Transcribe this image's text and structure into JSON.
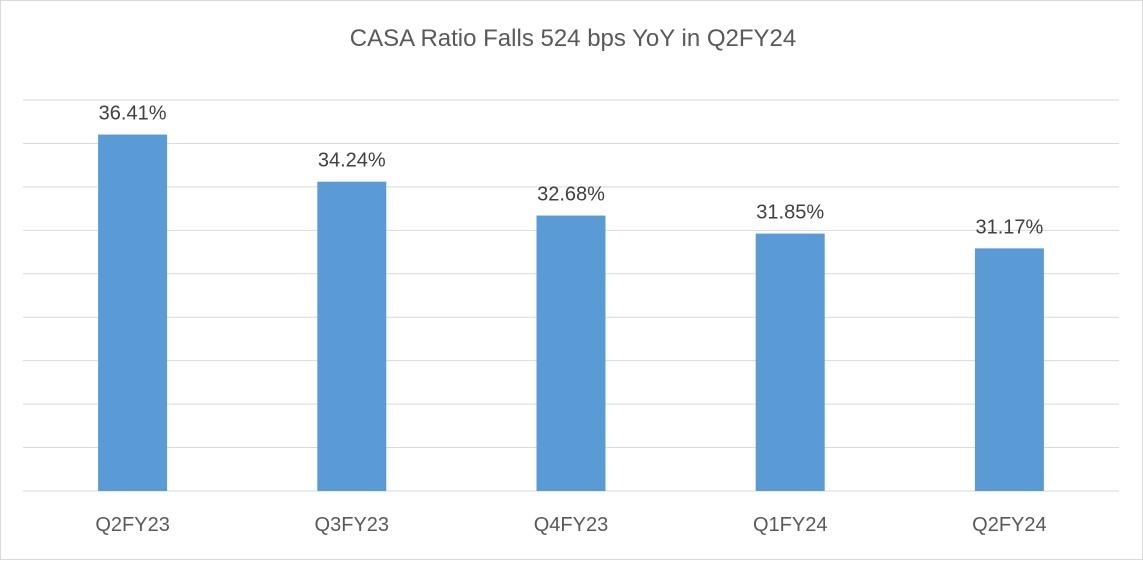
{
  "chart_data": {
    "type": "bar",
    "title": "CASA Ratio Falls 524 bps YoY in Q2FY24",
    "categories": [
      "Q2FY23",
      "Q3FY23",
      "Q4FY23",
      "Q1FY24",
      "Q2FY24"
    ],
    "values": [
      36.41,
      34.24,
      32.68,
      31.85,
      31.17
    ],
    "data_labels": [
      "36.41%",
      "34.24%",
      "32.68%",
      "31.85%",
      "31.17%"
    ],
    "xlabel": "",
    "ylabel": "",
    "ylim": [
      20,
      38
    ],
    "grid": true,
    "legend": "none",
    "bar_color": "#5b9bd5",
    "grid_color": "#d9d9d9"
  }
}
